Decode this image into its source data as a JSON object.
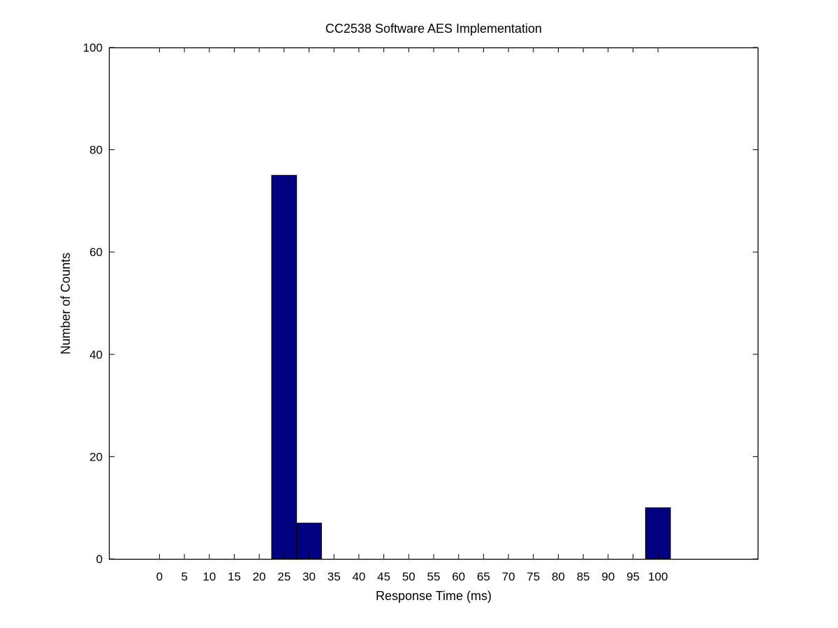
{
  "chart_data": {
    "type": "bar",
    "title": "CC2538 Software AES Implementation",
    "xlabel": "Response Time (ms)",
    "ylabel": "Number of Counts",
    "xlim": [
      -10,
      120
    ],
    "ylim": [
      0,
      100
    ],
    "x_ticks": [
      0,
      5,
      10,
      15,
      20,
      25,
      30,
      35,
      40,
      45,
      50,
      55,
      60,
      65,
      70,
      75,
      80,
      85,
      90,
      95,
      100
    ],
    "y_ticks": [
      0,
      20,
      40,
      60,
      80,
      100
    ],
    "bin_width": 5,
    "bars": [
      {
        "x": 25,
        "value": 75
      },
      {
        "x": 30,
        "value": 7
      },
      {
        "x": 100,
        "value": 10
      }
    ],
    "bar_color": "#000080",
    "grid": false
  }
}
